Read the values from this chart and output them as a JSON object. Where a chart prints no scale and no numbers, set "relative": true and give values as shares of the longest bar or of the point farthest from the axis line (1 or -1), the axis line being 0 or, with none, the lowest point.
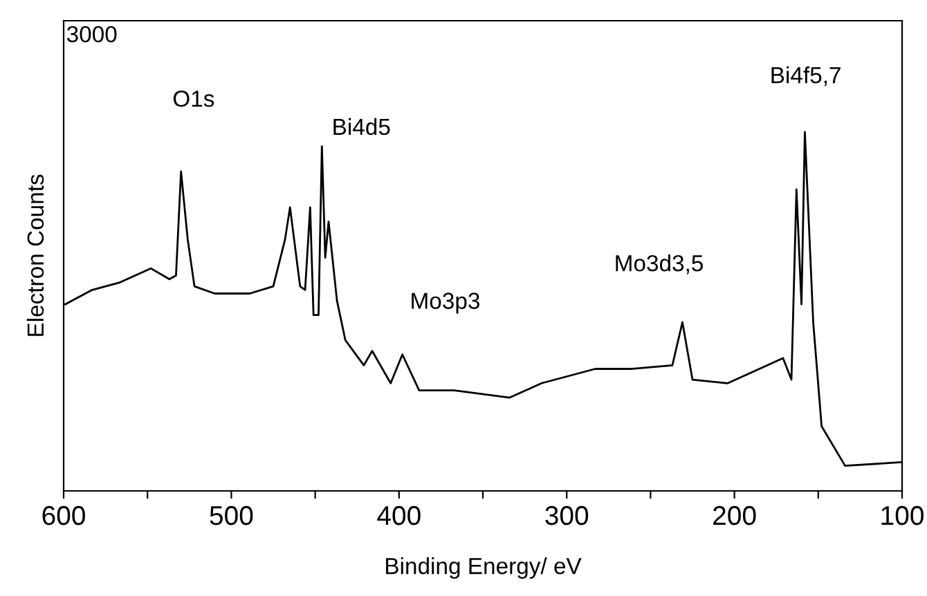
{
  "chart_data": {
    "type": "line",
    "relative": true,
    "xlabel": "Binding Energy/ eV",
    "ylabel": "Electron Counts",
    "xlim": [
      600,
      100
    ],
    "xticks": [
      600,
      {
        "value": 550,
        "label": null
      },
      500,
      {
        "value": 450,
        "label": null
      },
      400,
      {
        "value": 350,
        "label": null
      },
      300,
      {
        "value": 250,
        "label": null
      },
      200,
      {
        "value": 150,
        "label": null
      },
      100
    ],
    "grid": false,
    "legend": false,
    "marker": "none",
    "line_style": "solid",
    "annotations": [
      "3000",
      "O1s",
      "Bi4d5",
      "Mo3p3",
      "Mo3d3,5",
      "Bi4f5,7"
    ],
    "series": [
      {
        "color": "#000000",
        "x": [
          599,
          583,
          567,
          548,
          537,
          533,
          530,
          526,
          522,
          510,
          489,
          475,
          468,
          465,
          459,
          456,
          453,
          451,
          448,
          446,
          444,
          442,
          437,
          432,
          421,
          416,
          405,
          398,
          388,
          367,
          334,
          315,
          283,
          262,
          237,
          231,
          225,
          204,
          171,
          166,
          163,
          160,
          158,
          153,
          148,
          134,
          100
        ],
        "values": [
          0.52,
          0.56,
          0.58,
          0.62,
          0.59,
          0.6,
          0.89,
          0.7,
          0.57,
          0.55,
          0.55,
          0.57,
          0.7,
          0.79,
          0.57,
          0.56,
          0.79,
          0.49,
          0.49,
          0.96,
          0.65,
          0.75,
          0.53,
          0.42,
          0.35,
          0.39,
          0.3,
          0.38,
          0.28,
          0.28,
          0.26,
          0.3,
          0.34,
          0.34,
          0.35,
          0.47,
          0.31,
          0.3,
          0.37,
          0.31,
          0.84,
          0.52,
          1.0,
          0.47,
          0.18,
          0.07,
          0.08
        ]
      }
    ]
  }
}
